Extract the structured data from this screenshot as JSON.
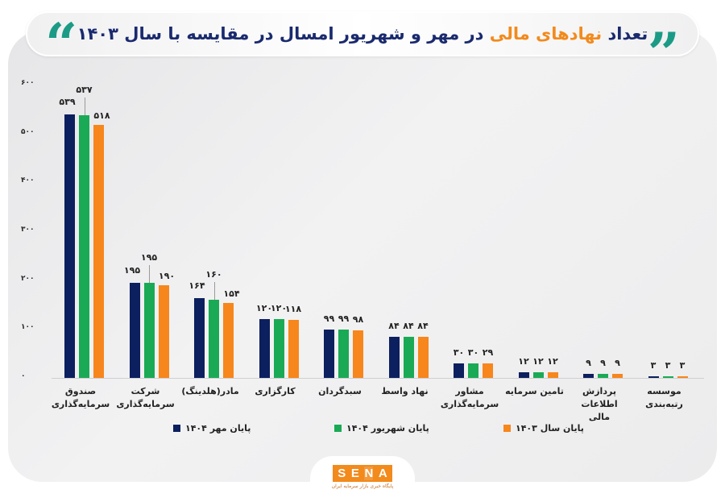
{
  "header": {
    "title_part1": "تعداد",
    "title_highlight": "نهادهای مالی",
    "title_part2": "در مهر و شهریور امسال در مقایسه با سال ۱۴۰۳",
    "quote_left": "“",
    "quote_right": "”"
  },
  "colors": {
    "series_1": "#0c1f5e",
    "series_2": "#1aaa55",
    "series_3": "#f7861c",
    "title": "#1a2a6e",
    "highlight": "#f28a1c",
    "quote": "#1b9b86"
  },
  "chart_data": {
    "type": "bar",
    "title": "تعداد نهادهای مالی در مهر و شهریور امسال در مقایسه با سال ۱۴۰۳",
    "xlabel": "",
    "ylabel": "",
    "ylim": [
      0,
      600
    ],
    "yticks": [
      0,
      100,
      200,
      300,
      400,
      500,
      600
    ],
    "ytick_labels": [
      "۰",
      "۱۰۰",
      "۲۰۰",
      "۳۰۰",
      "۴۰۰",
      "۵۰۰",
      "۶۰۰"
    ],
    "grid": false,
    "legend_position": "bottom",
    "categories": [
      "صندوق سرمایه‌گذاری",
      "شرکت سرمایه‌گذاری",
      "مادر(هلدینگ)",
      "کارگزاری",
      "سبدگردان",
      "نهاد واسط",
      "مشاور سرمایه‌گذاری",
      "تامین سرمایه",
      "پردازش اطلاعات مالی",
      "موسسه رتبه‌بندی"
    ],
    "series": [
      {
        "name": "پایان مهر ۱۴۰۴",
        "values": [
          539,
          195,
          164,
          120,
          99,
          84,
          30,
          12,
          9,
          3
        ]
      },
      {
        "name": "پایان شهریور ۱۴۰۴",
        "values": [
          537,
          195,
          160,
          120,
          99,
          84,
          30,
          12,
          9,
          3
        ]
      },
      {
        "name": "پایان سال ۱۴۰۳",
        "values": [
          518,
          190,
          154,
          118,
          98,
          84,
          29,
          12,
          9,
          3
        ]
      }
    ],
    "value_labels": [
      [
        "۵۳۹",
        "۱۹۵",
        "۱۶۴",
        "۱۲۰",
        "۹۹",
        "۸۴",
        "۳۰",
        "۱۲",
        "۹",
        "۳"
      ],
      [
        "۵۳۷",
        "۱۹۵",
        "۱۶۰",
        "۱۲۰",
        "۹۹",
        "۸۴",
        "۳۰",
        "۱۲",
        "۹",
        "۳"
      ],
      [
        "۵۱۸",
        "۱۹۰",
        "۱۵۴",
        "۱۱۸",
        "۹۸",
        "۸۴",
        "۲۹",
        "۱۲",
        "۹",
        "۳"
      ]
    ]
  },
  "category_labels": [
    [
      "صندوق",
      "سرمایه‌گذاری"
    ],
    [
      "شرکت",
      "سرمایه‌گذاری"
    ],
    [
      "مادر(هلدینگ)",
      ""
    ],
    [
      "کارگزاری",
      ""
    ],
    [
      "سبدگردان",
      ""
    ],
    [
      "نهاد واسط",
      ""
    ],
    [
      "مشاور",
      "سرمایه‌گذاری"
    ],
    [
      "تامین سرمایه",
      ""
    ],
    [
      "پردازش اطلاعات",
      "مالی"
    ],
    [
      "موسسه رتبه‌بندی",
      ""
    ]
  ],
  "legend": [
    {
      "label": "پایان مهر ۱۴۰۴",
      "color": "#0c1f5e"
    },
    {
      "label": "پایان شهریور ۱۴۰۴",
      "color": "#1aaa55"
    },
    {
      "label": "پایان سال ۱۴۰۳",
      "color": "#f7861c"
    }
  ],
  "footer": {
    "logo_letters": [
      "S",
      "E",
      "N",
      "A"
    ],
    "tagline": "پایگاه خبری بازار سرمایه ایران"
  }
}
